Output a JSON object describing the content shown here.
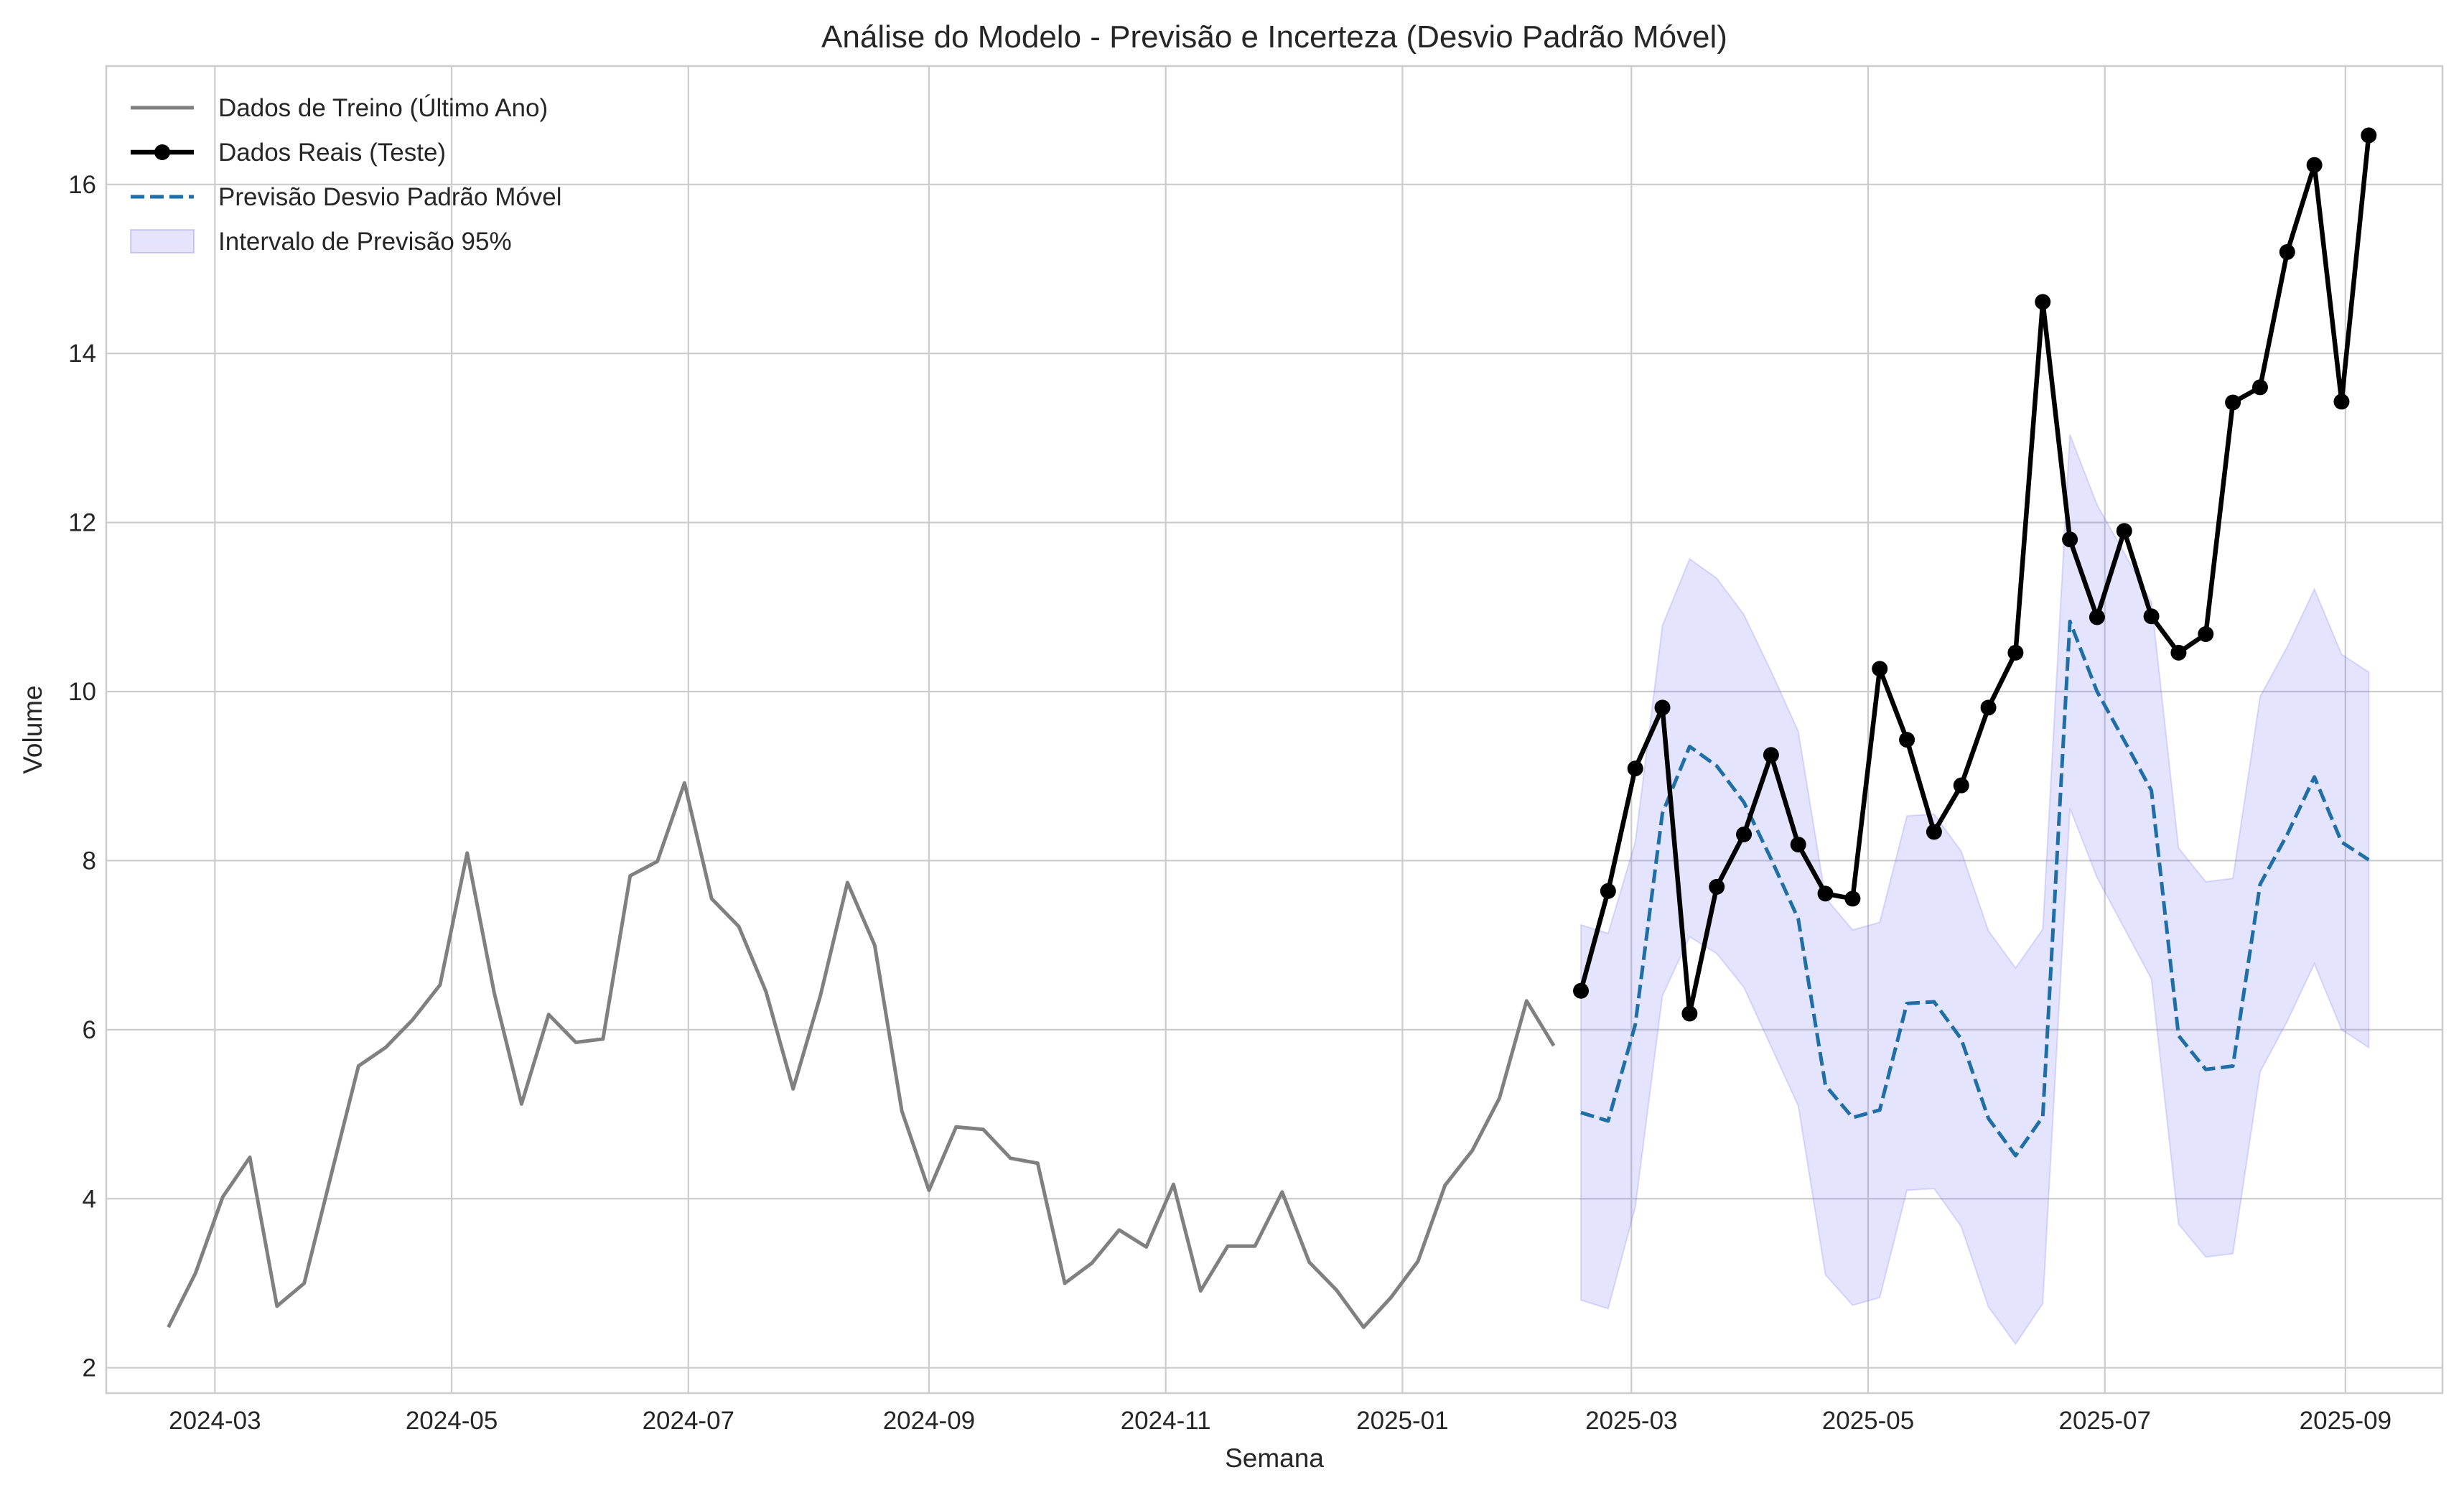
{
  "chart_data": {
    "type": "line",
    "title": "Análise do Modelo - Previsão e Incerteza (Desvio Padrão Móvel)",
    "xlabel": "Semana",
    "ylabel": "Volume",
    "x_axis": {
      "type": "date",
      "range": [
        "2024-02-02",
        "2025-09-26"
      ],
      "ticks": [
        {
          "date": "2024-03-01",
          "label": "2024-03"
        },
        {
          "date": "2024-05-01",
          "label": "2024-05"
        },
        {
          "date": "2024-07-01",
          "label": "2024-07"
        },
        {
          "date": "2024-09-01",
          "label": "2024-09"
        },
        {
          "date": "2024-11-01",
          "label": "2024-11"
        },
        {
          "date": "2025-01-01",
          "label": "2025-01"
        },
        {
          "date": "2025-03-01",
          "label": "2025-03"
        },
        {
          "date": "2025-05-01",
          "label": "2025-05"
        },
        {
          "date": "2025-07-01",
          "label": "2025-07"
        },
        {
          "date": "2025-09-01",
          "label": "2025-09"
        }
      ]
    },
    "y_axis": {
      "range": [
        1.7,
        17.4
      ],
      "ticks": [
        {
          "value": 2,
          "label": "2"
        },
        {
          "value": 4,
          "label": "4"
        },
        {
          "value": 6,
          "label": "6"
        },
        {
          "value": 8,
          "label": "8"
        },
        {
          "value": 10,
          "label": "10"
        },
        {
          "value": 12,
          "label": "12"
        },
        {
          "value": 14,
          "label": "14"
        },
        {
          "value": 16,
          "label": "16"
        }
      ]
    },
    "grid": true,
    "legend_position": "top-left",
    "series": [
      {
        "name": "Dados de Treino (Último Ano)",
        "style": "line",
        "color": "#808080",
        "x": [
          "2024-02-18",
          "2024-02-25",
          "2024-03-03",
          "2024-03-10",
          "2024-03-17",
          "2024-03-24",
          "2024-03-31",
          "2024-04-07",
          "2024-04-14",
          "2024-04-21",
          "2024-04-28",
          "2024-05-05",
          "2024-05-12",
          "2024-05-19",
          "2024-05-26",
          "2024-06-02",
          "2024-06-09",
          "2024-06-16",
          "2024-06-23",
          "2024-06-30",
          "2024-07-07",
          "2024-07-14",
          "2024-07-21",
          "2024-07-28",
          "2024-08-04",
          "2024-08-11",
          "2024-08-18",
          "2024-08-25",
          "2024-09-01",
          "2024-09-08",
          "2024-09-15",
          "2024-09-22",
          "2024-09-29",
          "2024-10-06",
          "2024-10-13",
          "2024-10-20",
          "2024-10-27",
          "2024-11-03",
          "2024-11-10",
          "2024-11-17",
          "2024-11-24",
          "2024-12-01",
          "2024-12-08",
          "2024-12-15",
          "2024-12-22",
          "2024-12-29",
          "2025-01-05",
          "2025-01-12",
          "2025-01-19",
          "2025-01-26",
          "2025-02-02",
          "2025-02-09"
        ],
        "values": [
          2.48,
          3.12,
          4.02,
          4.49,
          2.73,
          3.0,
          4.29,
          5.57,
          5.79,
          6.12,
          6.53,
          8.09,
          6.43,
          5.12,
          6.18,
          5.85,
          5.89,
          7.82,
          7.99,
          8.92,
          7.55,
          7.22,
          6.45,
          5.3,
          6.4,
          7.74,
          7.0,
          5.04,
          4.1,
          4.85,
          4.82,
          4.48,
          4.42,
          3.0,
          3.24,
          3.63,
          3.43,
          4.17,
          2.91,
          3.44,
          3.44,
          4.08,
          3.25,
          2.92,
          2.48,
          2.83,
          3.26,
          4.16,
          4.57,
          5.19,
          6.34,
          5.81
        ]
      },
      {
        "name": "Dados Reais (Teste)",
        "style": "line-marker",
        "color": "#000000",
        "x": [
          "2025-02-16",
          "2025-02-23",
          "2025-03-02",
          "2025-03-09",
          "2025-03-16",
          "2025-03-23",
          "2025-03-30",
          "2025-04-06",
          "2025-04-13",
          "2025-04-20",
          "2025-04-27",
          "2025-05-04",
          "2025-05-11",
          "2025-05-18",
          "2025-05-25",
          "2025-06-01",
          "2025-06-08",
          "2025-06-15",
          "2025-06-22",
          "2025-06-29",
          "2025-07-06",
          "2025-07-13",
          "2025-07-20",
          "2025-07-27",
          "2025-08-03",
          "2025-08-10",
          "2025-08-17",
          "2025-08-24",
          "2025-08-31",
          "2025-09-07"
        ],
        "values": [
          6.46,
          7.64,
          9.09,
          9.81,
          6.19,
          7.69,
          8.31,
          9.25,
          8.19,
          7.61,
          7.55,
          10.27,
          9.43,
          8.34,
          8.89,
          9.81,
          10.46,
          14.61,
          11.8,
          10.88,
          11.9,
          10.89,
          10.46,
          10.68,
          13.42,
          13.6,
          15.2,
          16.23,
          13.43,
          16.58
        ]
      },
      {
        "name": "Previsão Desvio Padrão Móvel",
        "style": "dashed-line",
        "color": "#1f6fa6",
        "x": [
          "2025-02-16",
          "2025-02-23",
          "2025-03-02",
          "2025-03-09",
          "2025-03-16",
          "2025-03-23",
          "2025-03-30",
          "2025-04-06",
          "2025-04-13",
          "2025-04-20",
          "2025-04-27",
          "2025-05-04",
          "2025-05-11",
          "2025-05-18",
          "2025-05-25",
          "2025-06-01",
          "2025-06-08",
          "2025-06-15",
          "2025-06-22",
          "2025-06-29",
          "2025-07-06",
          "2025-07-13",
          "2025-07-20",
          "2025-07-27",
          "2025-08-03",
          "2025-08-10",
          "2025-08-17",
          "2025-08-24",
          "2025-08-31",
          "2025-09-07"
        ],
        "values": [
          5.02,
          4.92,
          6.06,
          8.56,
          9.35,
          9.12,
          8.69,
          8.02,
          7.31,
          5.34,
          4.96,
          5.05,
          6.31,
          6.33,
          5.89,
          4.95,
          4.51,
          4.97,
          10.83,
          10.0,
          9.42,
          8.83,
          5.93,
          5.53,
          5.57,
          7.72,
          8.31,
          8.99,
          8.22,
          8.01
        ]
      },
      {
        "name": "Intervalo de Previsão 95%",
        "style": "band",
        "color": "#6a6aff",
        "x": [
          "2025-02-16",
          "2025-02-23",
          "2025-03-02",
          "2025-03-09",
          "2025-03-16",
          "2025-03-23",
          "2025-03-30",
          "2025-04-06",
          "2025-04-13",
          "2025-04-20",
          "2025-04-27",
          "2025-05-04",
          "2025-05-11",
          "2025-05-18",
          "2025-05-25",
          "2025-06-01",
          "2025-06-08",
          "2025-06-15",
          "2025-06-22",
          "2025-06-29",
          "2025-07-06",
          "2025-07-13",
          "2025-07-20",
          "2025-07-27",
          "2025-08-03",
          "2025-08-10",
          "2025-08-17",
          "2025-08-24",
          "2025-08-31",
          "2025-09-07"
        ],
        "lower": [
          2.8,
          2.7,
          3.9,
          6.4,
          7.1,
          6.9,
          6.5,
          5.8,
          5.1,
          3.1,
          2.74,
          2.83,
          4.1,
          4.12,
          3.67,
          2.72,
          2.28,
          2.76,
          8.62,
          7.8,
          7.2,
          6.6,
          3.7,
          3.31,
          3.35,
          5.5,
          6.1,
          6.78,
          6.0,
          5.79
        ],
        "upper": [
          7.24,
          7.14,
          8.22,
          10.78,
          11.57,
          11.34,
          10.91,
          10.24,
          9.53,
          7.56,
          7.18,
          7.27,
          8.53,
          8.55,
          8.11,
          7.17,
          6.73,
          7.19,
          13.04,
          12.21,
          11.64,
          11.06,
          8.15,
          7.75,
          7.79,
          9.94,
          10.53,
          11.21,
          10.44,
          10.23
        ]
      }
    ]
  }
}
